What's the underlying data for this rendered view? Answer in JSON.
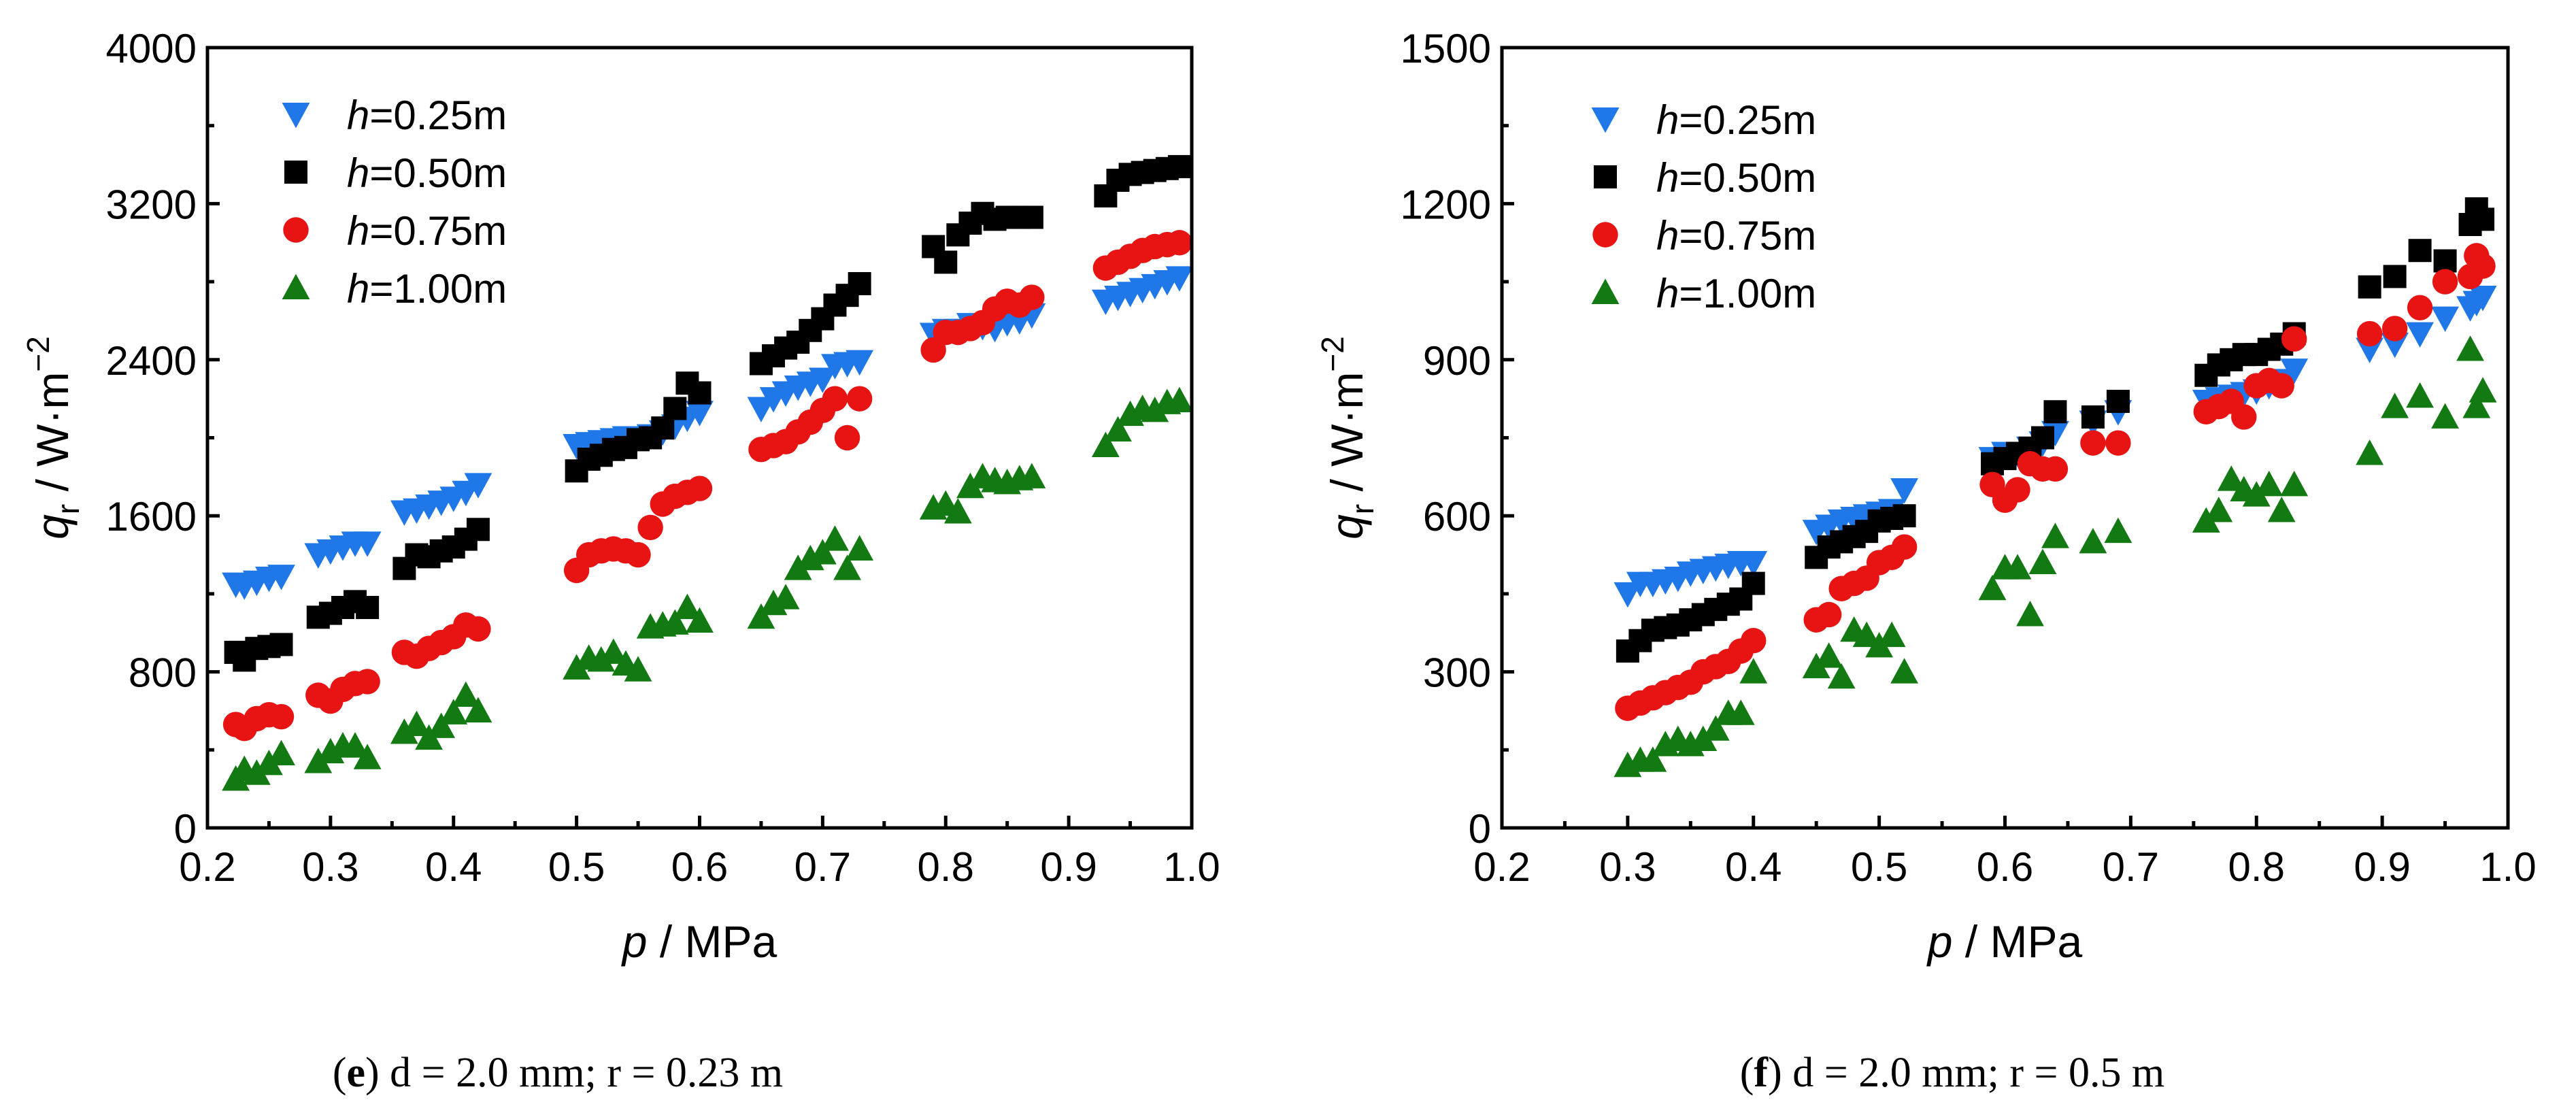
{
  "figure_title": "",
  "chart_data": [
    {
      "type": "scatter",
      "panel_label": "e",
      "caption_rest": "d = 2.0 mm; r = 0.23 m",
      "xlabel": "p / MPa",
      "ylabel": "q_r / W·m^-2",
      "xlim": [
        0.2,
        1.0
      ],
      "ylim": [
        0,
        4000
      ],
      "xticks": [
        0.2,
        0.3,
        0.4,
        0.5,
        0.6,
        0.7,
        0.8,
        0.9,
        1.0
      ],
      "xtick_labels": [
        "0.2",
        "0.3",
        "0.4",
        "0.5",
        "0.6",
        "0.7",
        "0.8",
        "0.9",
        "1.0"
      ],
      "yticks": [
        0,
        800,
        1600,
        2400,
        3200,
        4000
      ],
      "ytick_labels": [
        "0",
        "800",
        "1600",
        "2400",
        "3200",
        "4000"
      ],
      "legend_position": "top-left",
      "series": [
        {
          "name": "h=0.25m",
          "h_label": "h",
          "value_label": "=0.25m",
          "marker": "triangle-down",
          "color": "#1f77e8",
          "x": [
            0.223,
            0.23,
            0.24,
            0.25,
            0.26,
            0.29,
            0.3,
            0.31,
            0.32,
            0.33,
            0.36,
            0.37,
            0.38,
            0.39,
            0.4,
            0.41,
            0.42,
            0.5,
            0.51,
            0.52,
            0.53,
            0.54,
            0.55,
            0.56,
            0.57,
            0.58,
            0.59,
            0.6,
            0.65,
            0.66,
            0.67,
            0.68,
            0.69,
            0.7,
            0.71,
            0.72,
            0.73,
            0.79,
            0.8,
            0.81,
            0.82,
            0.83,
            0.84,
            0.85,
            0.86,
            0.87,
            0.93,
            0.94,
            0.95,
            0.96,
            0.97,
            0.98,
            0.99
          ],
          "y": [
            1250,
            1240,
            1260,
            1280,
            1290,
            1400,
            1420,
            1440,
            1460,
            1460,
            1620,
            1630,
            1650,
            1670,
            1690,
            1720,
            1760,
            1960,
            1970,
            1980,
            1990,
            2000,
            2000,
            2010,
            2030,
            2060,
            2100,
            2130,
            2150,
            2200,
            2230,
            2260,
            2280,
            2300,
            2370,
            2380,
            2390,
            2530,
            2550,
            2550,
            2580,
            2570,
            2560,
            2590,
            2600,
            2630,
            2700,
            2720,
            2740,
            2760,
            2780,
            2800,
            2820
          ]
        },
        {
          "name": "h=0.50m",
          "h_label": "h",
          "value_label": "=0.50m",
          "marker": "square",
          "color": "#000000",
          "x": [
            0.223,
            0.23,
            0.24,
            0.25,
            0.26,
            0.29,
            0.3,
            0.31,
            0.32,
            0.33,
            0.36,
            0.37,
            0.38,
            0.39,
            0.4,
            0.41,
            0.42,
            0.5,
            0.51,
            0.52,
            0.53,
            0.54,
            0.55,
            0.56,
            0.57,
            0.58,
            0.59,
            0.6,
            0.65,
            0.66,
            0.67,
            0.68,
            0.69,
            0.7,
            0.71,
            0.72,
            0.73,
            0.79,
            0.8,
            0.81,
            0.82,
            0.83,
            0.84,
            0.85,
            0.86,
            0.87,
            0.93,
            0.94,
            0.95,
            0.96,
            0.97,
            0.98,
            0.99
          ],
          "y": [
            900,
            860,
            920,
            930,
            940,
            1080,
            1100,
            1130,
            1160,
            1130,
            1330,
            1400,
            1390,
            1420,
            1440,
            1480,
            1530,
            1830,
            1890,
            1910,
            1940,
            1950,
            1990,
            2000,
            2050,
            2150,
            2280,
            2230,
            2380,
            2420,
            2460,
            2490,
            2550,
            2610,
            2680,
            2730,
            2790,
            2980,
            2900,
            3040,
            3100,
            3150,
            3120,
            3130,
            3130,
            3130,
            3240,
            3320,
            3350,
            3360,
            3370,
            3380,
            3390
          ]
        },
        {
          "name": "h=0.75m",
          "h_label": "h",
          "value_label": "=0.75m",
          "marker": "circle",
          "color": "#e81414",
          "x": [
            0.223,
            0.23,
            0.24,
            0.25,
            0.26,
            0.29,
            0.3,
            0.31,
            0.32,
            0.33,
            0.36,
            0.37,
            0.38,
            0.39,
            0.4,
            0.41,
            0.42,
            0.5,
            0.51,
            0.52,
            0.53,
            0.54,
            0.55,
            0.56,
            0.57,
            0.58,
            0.59,
            0.6,
            0.65,
            0.66,
            0.67,
            0.68,
            0.69,
            0.7,
            0.71,
            0.72,
            0.73,
            0.79,
            0.8,
            0.81,
            0.82,
            0.83,
            0.84,
            0.85,
            0.86,
            0.87,
            0.93,
            0.94,
            0.95,
            0.96,
            0.97,
            0.98,
            0.99
          ],
          "y": [
            530,
            510,
            560,
            580,
            570,
            680,
            650,
            710,
            740,
            750,
            900,
            880,
            920,
            950,
            980,
            1040,
            1020,
            1320,
            1400,
            1420,
            1430,
            1420,
            1400,
            1540,
            1660,
            1700,
            1720,
            1740,
            1940,
            1960,
            1980,
            2030,
            2080,
            2140,
            2200,
            2000,
            2200,
            2450,
            2540,
            2540,
            2560,
            2590,
            2660,
            2700,
            2680,
            2720,
            2870,
            2900,
            2930,
            2960,
            2980,
            2990,
            3000
          ]
        },
        {
          "name": "h=1.00m",
          "h_label": "h",
          "value_label": "=1.00m",
          "marker": "triangle-up",
          "color": "#137a13",
          "x": [
            0.223,
            0.23,
            0.24,
            0.25,
            0.26,
            0.29,
            0.3,
            0.31,
            0.32,
            0.33,
            0.36,
            0.37,
            0.38,
            0.39,
            0.4,
            0.41,
            0.42,
            0.5,
            0.51,
            0.52,
            0.53,
            0.54,
            0.55,
            0.56,
            0.57,
            0.58,
            0.59,
            0.6,
            0.65,
            0.66,
            0.67,
            0.68,
            0.69,
            0.7,
            0.71,
            0.72,
            0.73,
            0.79,
            0.8,
            0.81,
            0.82,
            0.83,
            0.84,
            0.85,
            0.86,
            0.87,
            0.93,
            0.94,
            0.95,
            0.96,
            0.97,
            0.98,
            0.99
          ],
          "y": [
            250,
            300,
            280,
            330,
            380,
            340,
            390,
            420,
            420,
            360,
            490,
            530,
            460,
            520,
            590,
            680,
            600,
            820,
            870,
            860,
            900,
            840,
            810,
            1030,
            1040,
            1050,
            1130,
            1060,
            1080,
            1150,
            1180,
            1330,
            1380,
            1410,
            1480,
            1330,
            1430,
            1640,
            1660,
            1620,
            1750,
            1800,
            1780,
            1770,
            1790,
            1800,
            1960,
            2040,
            2120,
            2150,
            2140,
            2180,
            2190
          ]
        }
      ]
    },
    {
      "type": "scatter",
      "panel_label": "f",
      "caption_rest": "d = 2.0 mm; r = 0.5 m",
      "xlabel": "p / MPa",
      "ylabel": "q_r / W·m^-2",
      "xlim": [
        0.2,
        1.0
      ],
      "ylim": [
        0,
        1500
      ],
      "xticks": [
        0.2,
        0.3,
        0.4,
        0.5,
        0.6,
        0.7,
        0.8,
        0.9,
        1.0
      ],
      "xtick_labels": [
        "0.2",
        "0.3",
        "0.4",
        "0.5",
        "0.6",
        "0.7",
        "0.8",
        "0.9",
        "1.0"
      ],
      "yticks": [
        0,
        300,
        600,
        900,
        1200,
        1500
      ],
      "ytick_labels": [
        "0",
        "300",
        "600",
        "900",
        "1200",
        "1500"
      ],
      "legend_position": "top-left",
      "series": [
        {
          "name": "h=0.25m",
          "h_label": "h",
          "value_label": "=0.25m",
          "marker": "triangle-down",
          "color": "#1f77e8",
          "x": [
            0.3,
            0.31,
            0.32,
            0.33,
            0.34,
            0.35,
            0.36,
            0.37,
            0.38,
            0.39,
            0.4,
            0.45,
            0.46,
            0.47,
            0.48,
            0.49,
            0.5,
            0.51,
            0.52,
            0.59,
            0.6,
            0.61,
            0.62,
            0.63,
            0.64,
            0.67,
            0.69,
            0.76,
            0.77,
            0.78,
            0.79,
            0.8,
            0.81,
            0.82,
            0.83,
            0.89,
            0.91,
            0.93,
            0.95,
            0.97,
            0.975,
            0.98
          ],
          "y": [
            450,
            470,
            470,
            475,
            480,
            490,
            495,
            500,
            505,
            510,
            510,
            570,
            580,
            590,
            595,
            600,
            605,
            610,
            650,
            710,
            720,
            720,
            730,
            740,
            760,
            780,
            800,
            820,
            825,
            830,
            835,
            840,
            850,
            860,
            880,
            920,
            930,
            950,
            980,
            1000,
            1010,
            1020
          ]
        },
        {
          "name": "h=0.50m",
          "h_label": "h",
          "value_label": "=0.50m",
          "marker": "square",
          "color": "#000000",
          "x": [
            0.3,
            0.31,
            0.32,
            0.33,
            0.34,
            0.35,
            0.36,
            0.37,
            0.38,
            0.39,
            0.4,
            0.45,
            0.46,
            0.47,
            0.48,
            0.49,
            0.5,
            0.51,
            0.52,
            0.59,
            0.6,
            0.61,
            0.62,
            0.63,
            0.64,
            0.67,
            0.69,
            0.76,
            0.77,
            0.78,
            0.79,
            0.8,
            0.81,
            0.82,
            0.83,
            0.89,
            0.91,
            0.93,
            0.95,
            0.97,
            0.975,
            0.98
          ],
          "y": [
            340,
            360,
            380,
            385,
            390,
            400,
            410,
            420,
            430,
            440,
            470,
            520,
            540,
            550,
            560,
            570,
            590,
            595,
            600,
            700,
            710,
            720,
            730,
            750,
            800,
            790,
            820,
            870,
            890,
            900,
            910,
            910,
            920,
            930,
            950,
            1040,
            1060,
            1110,
            1090,
            1160,
            1190,
            1170
          ]
        },
        {
          "name": "h=0.75m",
          "h_label": "h",
          "value_label": "=0.75m",
          "marker": "circle",
          "color": "#e81414",
          "x": [
            0.3,
            0.31,
            0.32,
            0.33,
            0.34,
            0.35,
            0.36,
            0.37,
            0.38,
            0.39,
            0.4,
            0.45,
            0.46,
            0.47,
            0.48,
            0.49,
            0.5,
            0.51,
            0.52,
            0.59,
            0.6,
            0.61,
            0.62,
            0.63,
            0.64,
            0.67,
            0.69,
            0.76,
            0.77,
            0.78,
            0.79,
            0.8,
            0.81,
            0.82,
            0.83,
            0.89,
            0.91,
            0.93,
            0.95,
            0.97,
            0.975,
            0.98
          ],
          "y": [
            230,
            240,
            250,
            260,
            270,
            280,
            300,
            310,
            320,
            340,
            360,
            400,
            410,
            460,
            470,
            480,
            510,
            520,
            540,
            660,
            630,
            650,
            700,
            690,
            690,
            740,
            740,
            800,
            810,
            820,
            790,
            850,
            860,
            850,
            940,
            950,
            960,
            1000,
            1050,
            1060,
            1100,
            1080
          ]
        },
        {
          "name": "h=1.00m",
          "h_label": "h",
          "value_label": "=1.00m",
          "marker": "triangle-up",
          "color": "#137a13",
          "x": [
            0.3,
            0.31,
            0.32,
            0.33,
            0.34,
            0.35,
            0.36,
            0.37,
            0.38,
            0.39,
            0.4,
            0.45,
            0.46,
            0.47,
            0.48,
            0.49,
            0.5,
            0.51,
            0.52,
            0.59,
            0.6,
            0.61,
            0.62,
            0.63,
            0.64,
            0.67,
            0.69,
            0.76,
            0.77,
            0.78,
            0.79,
            0.8,
            0.81,
            0.82,
            0.83,
            0.89,
            0.91,
            0.93,
            0.95,
            0.97,
            0.975,
            0.98
          ],
          "y": [
            120,
            130,
            130,
            160,
            170,
            160,
            170,
            190,
            220,
            220,
            300,
            310,
            330,
            290,
            380,
            370,
            350,
            370,
            300,
            460,
            500,
            500,
            410,
            510,
            560,
            550,
            570,
            590,
            610,
            670,
            650,
            640,
            660,
            610,
            660,
            720,
            810,
            830,
            790,
            920,
            810,
            840
          ]
        }
      ]
    }
  ]
}
